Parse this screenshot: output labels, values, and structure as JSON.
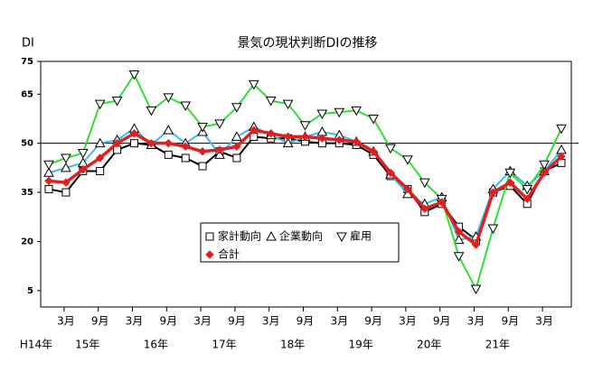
{
  "chart_data": {
    "type": "line",
    "title": "景気の現状判断DIの推移",
    "y_label": "DI",
    "categories": [
      null,
      "3月",
      null,
      "9月",
      null,
      "3月",
      null,
      "9月",
      null,
      "3月",
      null,
      "9月",
      null,
      "3月",
      null,
      "9月",
      null,
      "3月",
      null,
      "9月",
      null,
      "3月",
      null,
      "9月",
      null,
      "3月",
      null,
      "9月",
      null,
      "3月",
      null
    ],
    "year_labels": [
      "H14年",
      "15年",
      "16年",
      "17年",
      "18年",
      "19年",
      "20年",
      "21年"
    ],
    "ylim": [
      0,
      75
    ],
    "yticks": [
      5,
      20,
      35,
      50,
      65,
      75
    ],
    "reference_line": 50,
    "series": [
      {
        "name": "家計動向",
        "color": "#000000",
        "marker": "square",
        "values": [
          36,
          35,
          41.5,
          41.5,
          48,
          50,
          49.5,
          46.5,
          45.5,
          43,
          47.5,
          45.5,
          52,
          51.5,
          51.5,
          50.5,
          50,
          50,
          49.5,
          46.5,
          40,
          36,
          29,
          31.5,
          24.5,
          20.5,
          35,
          37,
          31.5,
          41.5,
          44
        ]
      },
      {
        "name": "企業動向",
        "color": "#40b8e8",
        "marker": "triangle",
        "values": [
          41,
          42.5,
          44,
          50,
          51,
          54.5,
          49.5,
          54,
          50,
          53.5,
          46.5,
          52,
          55,
          52.5,
          50,
          52,
          53.5,
          52.5,
          50.5,
          47.5,
          40.5,
          34.5,
          31.5,
          33.5,
          20.5,
          21.5,
          36,
          41.5,
          37,
          41.5,
          48
        ]
      },
      {
        "name": "雇用",
        "color": "#33dd33",
        "marker": "triangle-down",
        "values": [
          43.5,
          45.5,
          47,
          62,
          63,
          71,
          60,
          64,
          61.5,
          55,
          56,
          61,
          68,
          63,
          62,
          55.5,
          59,
          59.5,
          60,
          57.5,
          48.5,
          45,
          38,
          33,
          15.5,
          5.5,
          24,
          41,
          36,
          43.5,
          54.5
        ]
      },
      {
        "name": "合計",
        "color": "#e02020",
        "marker": "diamond",
        "values": [
          38.5,
          38,
          42,
          45.5,
          50,
          53,
          50,
          50,
          49,
          47.5,
          48,
          49,
          54,
          53,
          52,
          52,
          51.5,
          51,
          50.5,
          47.5,
          41,
          36,
          30,
          32,
          23,
          19,
          35,
          38,
          33,
          41,
          46
        ]
      }
    ]
  }
}
